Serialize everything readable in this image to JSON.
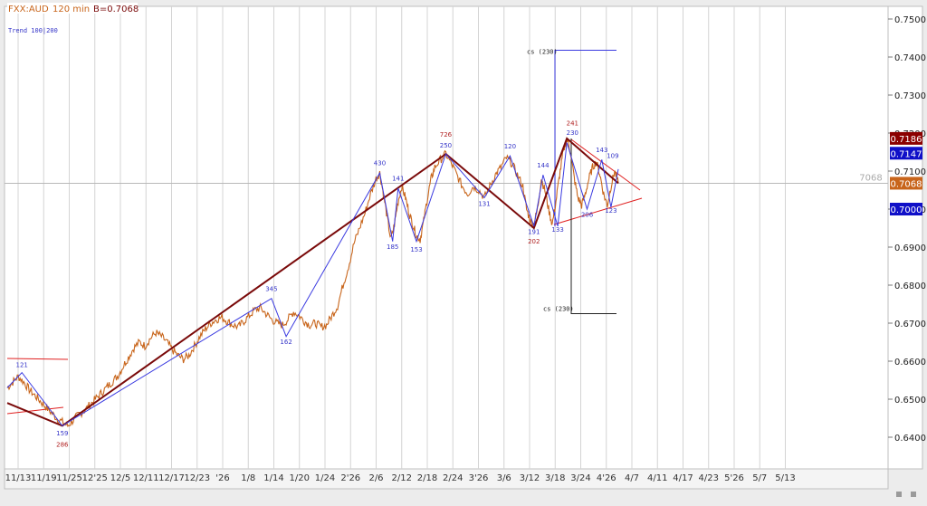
{
  "header": {
    "symbol": "FXX:AUD",
    "interval": "120 min",
    "last_label": "B=0.7068",
    "indicator": "Trend 100|200"
  },
  "colors": {
    "background": "#ffffff",
    "frame": "#e6e6e6",
    "grid": "#d4d4d4",
    "price": "#c8651b",
    "wave_blue": "#3a3ae0",
    "trend_dark": "#7a0a0a",
    "channel_red": "#e02020",
    "label_blue": "#3434c8",
    "label_red": "#b02020"
  },
  "chart_data": {
    "type": "line",
    "y_axis": {
      "ylim": [
        0.635,
        0.7535
      ],
      "ticks": [
        "0.6400",
        "0.6500",
        "0.6600",
        "0.6700",
        "0.6800",
        "0.6900",
        "0.7000",
        "0.7100",
        "0.7200",
        "0.7300",
        "0.7400",
        "0.7500"
      ],
      "position": "right"
    },
    "x_axis": {
      "ticks": [
        "11/13",
        "11/19",
        "11/25",
        "12'25",
        "12/5",
        "12/11",
        "12/17",
        "12/23",
        "'26",
        "1/8",
        "1/14",
        "1/20",
        "1/24",
        "2'26",
        "2/6",
        "2/12",
        "2/18",
        "2/24",
        "3'26",
        "3/6",
        "3/12",
        "3/18",
        "3/24",
        "4'26",
        "4/7",
        "4/11",
        "4/17",
        "4/23",
        "5'26",
        "5/7",
        "5/13"
      ]
    },
    "price_tags": [
      {
        "value": "0.7186",
        "color": "#8b0000"
      },
      {
        "value": "0.7147",
        "color": "#1010c8"
      },
      {
        "value": "0.7068",
        "color": "#c8651b"
      },
      {
        "value": "0.7000",
        "color": "#1010c8"
      }
    ],
    "hline_label": "7068",
    "hline_value": 0.7068,
    "series": [
      {
        "name": "FXX:AUD",
        "points": [
          [
            0,
            0.653
          ],
          [
            3,
            0.6545
          ],
          [
            6,
            0.656
          ],
          [
            9,
            0.6545
          ],
          [
            12,
            0.6525
          ],
          [
            15,
            0.651
          ],
          [
            18,
            0.6495
          ],
          [
            21,
            0.648
          ],
          [
            24,
            0.6465
          ],
          [
            27,
            0.645
          ],
          [
            30,
            0.644
          ],
          [
            33,
            0.643
          ],
          [
            36,
            0.6445
          ],
          [
            39,
            0.646
          ],
          [
            42,
            0.647
          ],
          [
            45,
            0.6485
          ],
          [
            48,
            0.65
          ],
          [
            51,
            0.6515
          ],
          [
            54,
            0.653
          ],
          [
            57,
            0.6545
          ],
          [
            60,
            0.656
          ],
          [
            63,
            0.6585
          ],
          [
            66,
            0.661
          ],
          [
            69,
            0.6635
          ],
          [
            72,
            0.665
          ],
          [
            75,
            0.664
          ],
          [
            78,
            0.666
          ],
          [
            81,
            0.6675
          ],
          [
            84,
            0.6665
          ],
          [
            87,
            0.665
          ],
          [
            90,
            0.663
          ],
          [
            93,
            0.6615
          ],
          [
            96,
            0.6605
          ],
          [
            99,
            0.6615
          ],
          [
            102,
            0.664
          ],
          [
            105,
            0.6665
          ],
          [
            108,
            0.6685
          ],
          [
            111,
            0.67
          ],
          [
            114,
            0.671
          ],
          [
            117,
            0.6715
          ],
          [
            120,
            0.6705
          ],
          [
            123,
            0.6695
          ],
          [
            126,
            0.669
          ],
          [
            129,
            0.6705
          ],
          [
            132,
            0.672
          ],
          [
            135,
            0.6735
          ],
          [
            138,
            0.674
          ],
          [
            141,
            0.6725
          ],
          [
            144,
            0.671
          ],
          [
            147,
            0.67
          ],
          [
            150,
            0.6695
          ],
          [
            153,
            0.671
          ],
          [
            156,
            0.673
          ],
          [
            159,
            0.672
          ],
          [
            162,
            0.6705
          ],
          [
            165,
            0.6695
          ],
          [
            168,
            0.67
          ],
          [
            171,
            0.669
          ],
          [
            174,
            0.6695
          ],
          [
            177,
            0.672
          ],
          [
            180,
            0.6745
          ],
          [
            183,
            0.68
          ],
          [
            186,
            0.685
          ],
          [
            189,
            0.691
          ],
          [
            192,
            0.695
          ],
          [
            195,
            0.699
          ],
          [
            198,
            0.704
          ],
          [
            201,
            0.708
          ],
          [
            203,
            0.7095
          ],
          [
            205,
            0.704
          ],
          [
            207,
            0.698
          ],
          [
            209,
            0.692
          ],
          [
            211,
            0.696
          ],
          [
            213,
            0.702
          ],
          [
            215,
            0.706
          ],
          [
            217,
            0.703
          ],
          [
            219,
            0.699
          ],
          [
            221,
            0.696
          ],
          [
            223,
            0.693
          ],
          [
            225,
            0.692
          ],
          [
            227,
            0.697
          ],
          [
            229,
            0.703
          ],
          [
            231,
            0.708
          ],
          [
            233,
            0.711
          ],
          [
            236,
            0.713
          ],
          [
            239,
            0.7145
          ],
          [
            242,
            0.712
          ],
          [
            245,
            0.709
          ],
          [
            248,
            0.706
          ],
          [
            251,
            0.704
          ],
          [
            254,
            0.706
          ],
          [
            257,
            0.705
          ],
          [
            260,
            0.703
          ],
          [
            263,
            0.706
          ],
          [
            266,
            0.709
          ],
          [
            269,
            0.711
          ],
          [
            272,
            0.7135
          ],
          [
            275,
            0.712
          ],
          [
            278,
            0.709
          ],
          [
            281,
            0.706
          ],
          [
            283,
            0.7
          ],
          [
            285,
            0.697
          ],
          [
            287,
            0.696
          ],
          [
            289,
            0.7
          ],
          [
            291,
            0.708
          ],
          [
            293,
            0.705
          ],
          [
            295,
            0.7
          ],
          [
            297,
            0.696
          ],
          [
            299,
            0.702
          ],
          [
            301,
            0.709
          ],
          [
            303,
            0.715
          ],
          [
            305,
            0.7186
          ],
          [
            307,
            0.715
          ],
          [
            309,
            0.708
          ],
          [
            311,
            0.703
          ],
          [
            313,
            0.701
          ],
          [
            315,
            0.704
          ],
          [
            317,
            0.708
          ],
          [
            319,
            0.711
          ],
          [
            321,
            0.7125
          ],
          [
            323,
            0.709
          ],
          [
            325,
            0.704
          ],
          [
            327,
            0.701
          ],
          [
            329,
            0.706
          ],
          [
            331,
            0.71
          ],
          [
            333,
            0.7068
          ]
        ]
      }
    ],
    "waves": [
      {
        "name": "major-trend",
        "color": "trend_dark",
        "points": [
          [
            0,
            0.649
          ],
          [
            30,
            0.643
          ],
          [
            239,
            0.7145
          ],
          [
            287,
            0.695
          ],
          [
            305,
            0.7186
          ],
          [
            333,
            0.7068
          ]
        ]
      },
      {
        "name": "minor-waves",
        "color": "wave_blue",
        "points": [
          [
            0,
            0.653
          ],
          [
            8,
            0.657
          ],
          [
            30,
            0.643
          ],
          [
            144,
            0.6765
          ],
          [
            152,
            0.6665
          ],
          [
            203,
            0.7095
          ],
          [
            210,
            0.6915
          ],
          [
            213,
            0.7055
          ],
          [
            223,
            0.6915
          ],
          [
            239,
            0.7145
          ],
          [
            260,
            0.703
          ],
          [
            274,
            0.714
          ],
          [
            287,
            0.6955
          ],
          [
            292,
            0.709
          ],
          [
            300,
            0.6955
          ],
          [
            305,
            0.7175
          ],
          [
            316,
            0.7
          ],
          [
            324,
            0.713
          ],
          [
            329,
            0.7005
          ],
          [
            333,
            0.7105
          ]
        ]
      }
    ],
    "wave_labels": [
      {
        "text": "121",
        "x": 8,
        "y": 0.6585,
        "color": "blue"
      },
      {
        "text": "159",
        "x": 30,
        "y": 0.6405,
        "color": "blue"
      },
      {
        "text": "286",
        "x": 30,
        "y": 0.6375,
        "color": "red"
      },
      {
        "text": "345",
        "x": 144,
        "y": 0.6785,
        "color": "blue"
      },
      {
        "text": "162",
        "x": 152,
        "y": 0.6645,
        "color": "blue"
      },
      {
        "text": "430",
        "x": 203,
        "y": 0.7115,
        "color": "blue"
      },
      {
        "text": "185",
        "x": 210,
        "y": 0.6895,
        "color": "blue"
      },
      {
        "text": "141",
        "x": 213,
        "y": 0.7075,
        "color": "blue"
      },
      {
        "text": "153",
        "x": 223,
        "y": 0.6888,
        "color": "blue"
      },
      {
        "text": "726",
        "x": 239,
        "y": 0.719,
        "color": "red"
      },
      {
        "text": "250",
        "x": 239,
        "y": 0.7162,
        "color": "blue"
      },
      {
        "text": "131",
        "x": 260,
        "y": 0.7008,
        "color": "blue"
      },
      {
        "text": "120",
        "x": 274,
        "y": 0.716,
        "color": "blue"
      },
      {
        "text": "191",
        "x": 287,
        "y": 0.6935,
        "color": "blue"
      },
      {
        "text": "202",
        "x": 287,
        "y": 0.691,
        "color": "red"
      },
      {
        "text": "144",
        "x": 292,
        "y": 0.711,
        "color": "blue"
      },
      {
        "text": "133",
        "x": 300,
        "y": 0.694,
        "color": "blue"
      },
      {
        "text": "241",
        "x": 308,
        "y": 0.722,
        "color": "red"
      },
      {
        "text": "230",
        "x": 308,
        "y": 0.7195,
        "color": "blue"
      },
      {
        "text": "206",
        "x": 316,
        "y": 0.698,
        "color": "blue"
      },
      {
        "text": "143",
        "x": 324,
        "y": 0.715,
        "color": "blue"
      },
      {
        "text": "109",
        "x": 330,
        "y": 0.7135,
        "color": "blue"
      },
      {
        "text": "123",
        "x": 329,
        "y": 0.699,
        "color": "blue"
      }
    ],
    "cs_label": "cs (230)",
    "cs_top": 0.7418,
    "cs_bottom": 0.6725
  }
}
